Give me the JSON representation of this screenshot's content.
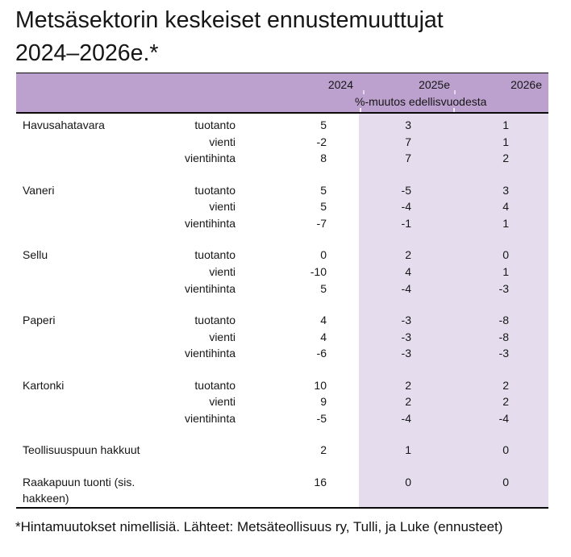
{
  "chart_data": {
    "type": "table",
    "title": "Metsäsektorin keskeiset ennustemuuttujat 2024–2026e.*",
    "title_lines": [
      "Metsäsektorin keskeiset ennustemuuttujat",
      "2024–2026e.*"
    ],
    "columns": [
      "2024",
      "2025e",
      "2026e"
    ],
    "subheader": "%-muutos edellisvuodesta",
    "forecast_columns_highlighted": [
      "2025e",
      "2026e"
    ],
    "groups": [
      {
        "commodity": "Havusahatavara",
        "rows": [
          {
            "measure": "tuotanto",
            "y2024": 5,
            "y2025": 3,
            "y2026": 1
          },
          {
            "measure": "vienti",
            "y2024": -2,
            "y2025": 7,
            "y2026": 1
          },
          {
            "measure": "vientihinta",
            "y2024": 8,
            "y2025": 7,
            "y2026": 2
          }
        ]
      },
      {
        "commodity": "Vaneri",
        "rows": [
          {
            "measure": "tuotanto",
            "y2024": 5,
            "y2025": -5,
            "y2026": 3
          },
          {
            "measure": "vienti",
            "y2024": 5,
            "y2025": -4,
            "y2026": 4
          },
          {
            "measure": "vientihinta",
            "y2024": -7,
            "y2025": -1,
            "y2026": 1
          }
        ]
      },
      {
        "commodity": "Sellu",
        "rows": [
          {
            "measure": "tuotanto",
            "y2024": 0,
            "y2025": 2,
            "y2026": 0
          },
          {
            "measure": "vienti",
            "y2024": -10,
            "y2025": 4,
            "y2026": 1
          },
          {
            "measure": "vientihinta",
            "y2024": 5,
            "y2025": -4,
            "y2026": -3
          }
        ]
      },
      {
        "commodity": "Paperi",
        "rows": [
          {
            "measure": "tuotanto",
            "y2024": 4,
            "y2025": -3,
            "y2026": -8
          },
          {
            "measure": "vienti",
            "y2024": 4,
            "y2025": -3,
            "y2026": -8
          },
          {
            "measure": "vientihinta",
            "y2024": -6,
            "y2025": -3,
            "y2026": -3
          }
        ]
      },
      {
        "commodity": "Kartonki",
        "rows": [
          {
            "measure": "tuotanto",
            "y2024": 10,
            "y2025": 2,
            "y2026": 2
          },
          {
            "measure": "vienti",
            "y2024": 9,
            "y2025": 2,
            "y2026": 2
          },
          {
            "measure": "vientihinta",
            "y2024": -5,
            "y2025": -4,
            "y2026": -4
          }
        ]
      }
    ],
    "summary_rows": [
      {
        "commodity": "Teollisuuspuun hakkuut",
        "y2024": 2,
        "y2025": 1,
        "y2026": 0
      },
      {
        "commodity": "Raakapuun tuonti (sis. hakkeen)",
        "y2024": 16,
        "y2025": 0,
        "y2026": 0
      }
    ],
    "footnote": "*Hintamuutokset nimellisiä. Lähteet: Metsäteollisuus ry, Tulli, ja Luke (ennusteet)",
    "colors": {
      "header_band": "#bca0ce",
      "forecast_band": "#e5ddee",
      "border": "#0a0a0a"
    }
  }
}
